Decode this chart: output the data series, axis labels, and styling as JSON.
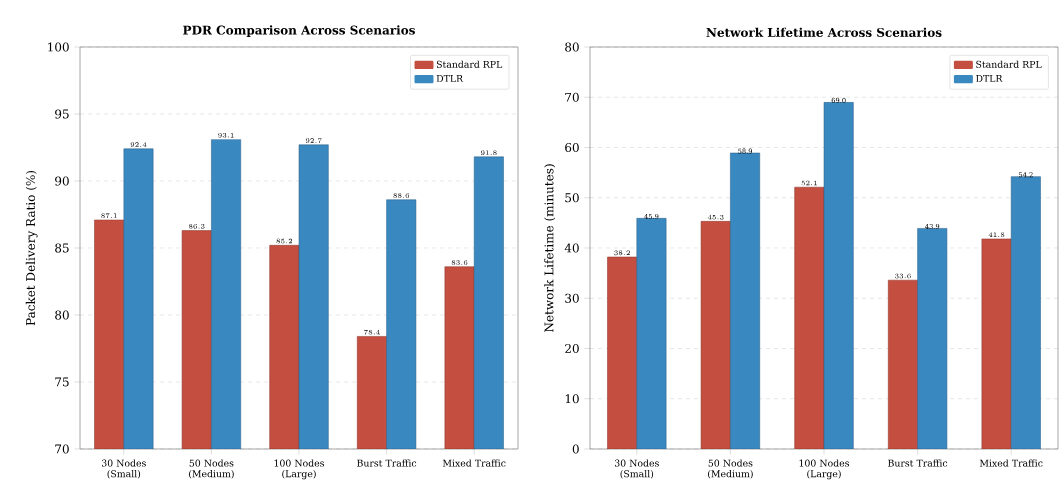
{
  "chart_data": [
    {
      "type": "bar",
      "title": "PDR Comparison Across Scenarios",
      "ylabel": "Packet Delivery Ratio (%)",
      "categories": [
        "30 Nodes (Small)",
        "50 Nodes (Medium)",
        "100 Nodes (Large)",
        "Burst Traffic",
        "Mixed Traffic"
      ],
      "series": [
        {
          "name": "Standard RPL",
          "color": "#c44e3f",
          "values": [
            87.1,
            86.3,
            85.2,
            78.4,
            83.6
          ]
        },
        {
          "name": "DTLR",
          "color": "#3a88c0",
          "values": [
            92.4,
            93.1,
            92.7,
            88.6,
            91.8
          ]
        }
      ],
      "ylim": [
        70,
        100
      ],
      "yticks": [
        70,
        75,
        80,
        85,
        90,
        95,
        100
      ],
      "grid": "y",
      "legend": "top right",
      "data_labels": true
    },
    {
      "type": "bar",
      "title": "Network Lifetime Across Scenarios",
      "ylabel": "Network Lifetime (minutes)",
      "categories": [
        "30 Nodes (Small)",
        "50 Nodes (Medium)",
        "100 Nodes (Large)",
        "Burst Traffic",
        "Mixed Traffic"
      ],
      "series": [
        {
          "name": "Standard RPL",
          "color": "#c44e3f",
          "values": [
            38.2,
            45.3,
            52.1,
            33.6,
            41.8
          ]
        },
        {
          "name": "DTLR",
          "color": "#3a88c0",
          "values": [
            45.9,
            58.9,
            69.0,
            43.9,
            54.2
          ],
          "value_labels": [
            "45.9",
            "58.9",
            "69.0",
            "43.9",
            "54.2"
          ]
        }
      ],
      "ylim": [
        0,
        80
      ],
      "yticks": [
        0,
        10,
        20,
        30,
        40,
        50,
        60,
        70,
        80
      ],
      "grid": "y",
      "legend": "top right",
      "data_labels": true
    }
  ]
}
